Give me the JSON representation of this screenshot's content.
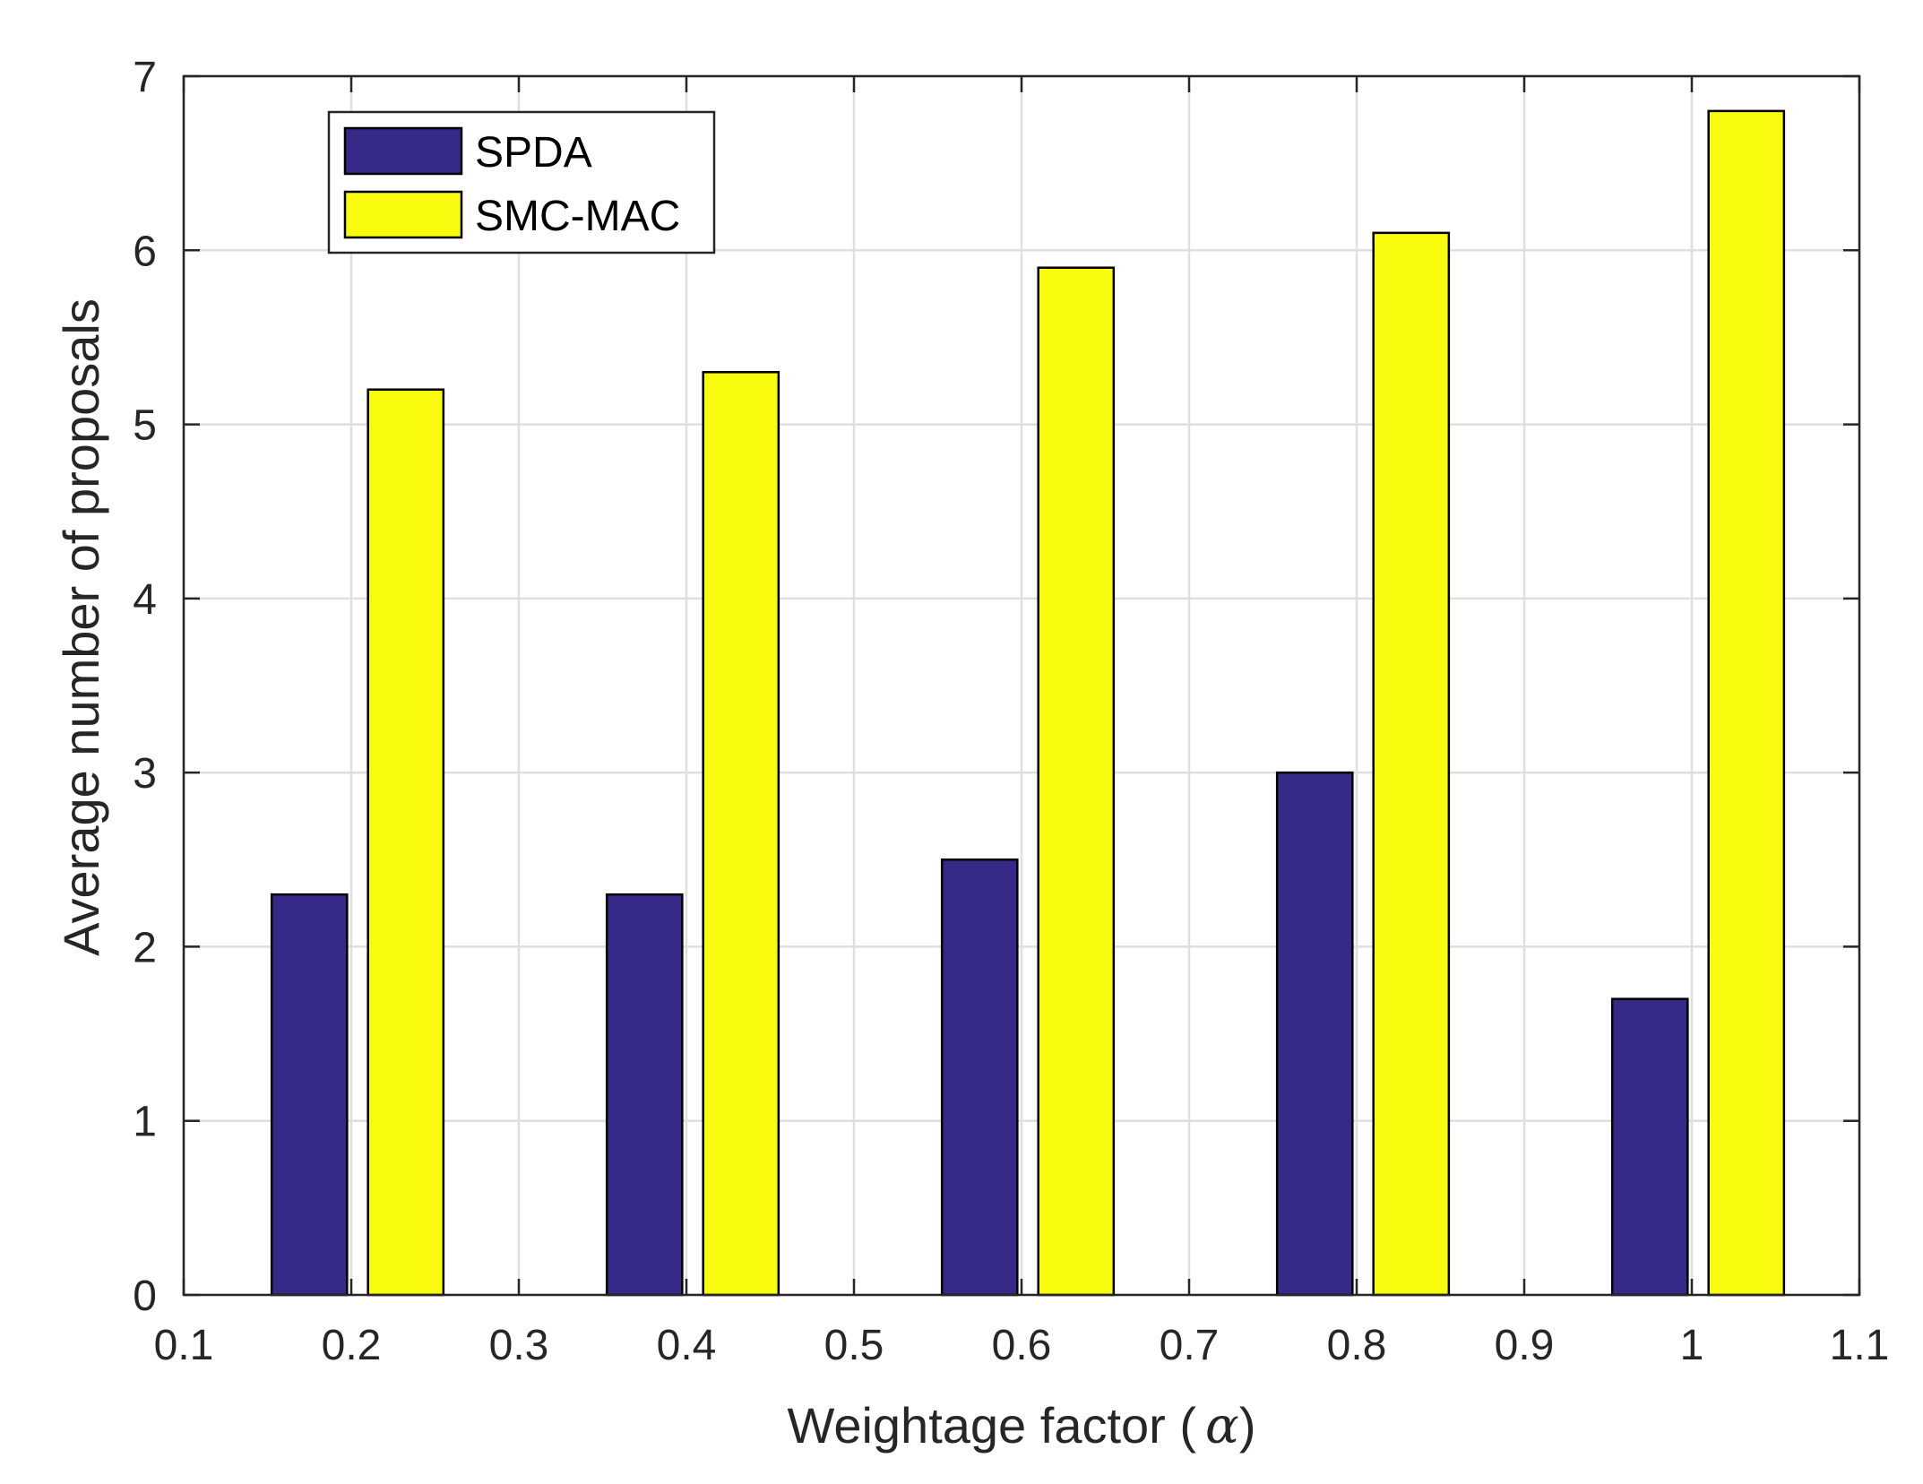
{
  "chart_data": {
    "type": "bar",
    "title": "",
    "xlabel": "Weightage factor (",
    "xlabel_symbol": "α",
    "xlabel_close": ")",
    "ylabel": "Average number of proposals",
    "xlim": [
      0.1,
      1.1
    ],
    "ylim": [
      0,
      7
    ],
    "x_ticks": [
      "0.1",
      "0.2",
      "0.3",
      "0.4",
      "0.5",
      "0.6",
      "0.7",
      "0.8",
      "0.9",
      "1",
      "1.1"
    ],
    "y_ticks": [
      "0",
      "1",
      "2",
      "3",
      "4",
      "5",
      "6",
      "7"
    ],
    "grid": true,
    "legend_position": "top-left",
    "categories": [
      0.2,
      0.4,
      0.6,
      0.8,
      1.0
    ],
    "series": [
      {
        "name": "SPDA",
        "color": "#352a87",
        "x": [
          0.175,
          0.375,
          0.575,
          0.775,
          0.975
        ],
        "values": [
          2.3,
          2.3,
          2.5,
          3.0,
          1.7
        ]
      },
      {
        "name": "SMC-MAC",
        "color": "#f9fb0e",
        "x": [
          0.2325,
          0.4325,
          0.6325,
          0.8325,
          1.0325
        ],
        "values": [
          5.2,
          5.3,
          5.9,
          6.1,
          6.8
        ]
      }
    ],
    "bar_width": 0.045
  }
}
